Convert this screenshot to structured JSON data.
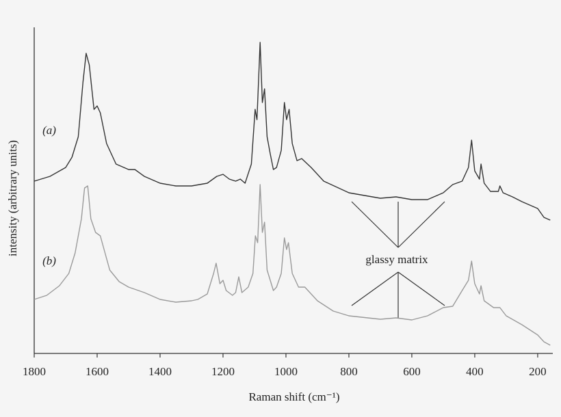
{
  "chart_data": {
    "type": "line",
    "xlabel": "Raman shift (cm⁻¹)",
    "ylabel": "intensity (arbitrary units)",
    "annotation": "glassy matrix",
    "xlim": [
      1800,
      152
    ],
    "ylim": [
      0,
      480
    ],
    "xticks": [
      1800,
      1600,
      1400,
      1200,
      1000,
      800,
      600,
      400,
      200
    ],
    "series": [
      {
        "name": "(a)",
        "color": "#333333",
        "x": [
          1800,
          1750,
          1700,
          1680,
          1660,
          1645,
          1635,
          1625,
          1610,
          1600,
          1590,
          1570,
          1540,
          1500,
          1480,
          1450,
          1400,
          1350,
          1300,
          1250,
          1220,
          1200,
          1180,
          1160,
          1145,
          1130,
          1110,
          1098,
          1092,
          1082,
          1075,
          1068,
          1060,
          1050,
          1040,
          1030,
          1015,
          1005,
          998,
          990,
          980,
          965,
          950,
          920,
          880,
          800,
          700,
          650,
          600,
          550,
          500,
          470,
          440,
          420,
          410,
          400,
          385,
          380,
          370,
          350,
          325,
          320,
          310,
          280,
          250,
          200,
          180,
          160
        ],
        "values": [
          252,
          259,
          272,
          287,
          317,
          397,
          439,
          422,
          357,
          362,
          352,
          307,
          277,
          269,
          269,
          259,
          249,
          245,
          245,
          249,
          259,
          262,
          255,
          252,
          255,
          249,
          277,
          357,
          342,
          455,
          367,
          387,
          317,
          292,
          269,
          272,
          297,
          367,
          342,
          357,
          307,
          282,
          285,
          272,
          252,
          235,
          227,
          229,
          225,
          225,
          235,
          247,
          252,
          272,
          312,
          267,
          255,
          277,
          249,
          237,
          237,
          245,
          235,
          229,
          222,
          212,
          199,
          195
        ]
      },
      {
        "name": "(b)",
        "color": "#9a9a9a",
        "x": [
          1800,
          1760,
          1720,
          1690,
          1670,
          1650,
          1640,
          1630,
          1620,
          1605,
          1590,
          1575,
          1560,
          1530,
          1500,
          1450,
          1400,
          1350,
          1300,
          1280,
          1250,
          1230,
          1222,
          1210,
          1200,
          1190,
          1170,
          1160,
          1150,
          1140,
          1120,
          1105,
          1097,
          1090,
          1082,
          1075,
          1068,
          1060,
          1050,
          1040,
          1030,
          1015,
          1005,
          998,
          992,
          980,
          960,
          940,
          900,
          850,
          800,
          700,
          650,
          600,
          550,
          500,
          470,
          440,
          420,
          410,
          400,
          385,
          380,
          370,
          340,
          320,
          300,
          250,
          200,
          180,
          160
        ],
        "values": [
          79,
          85,
          99,
          117,
          147,
          197,
          242,
          245,
          197,
          177,
          172,
          147,
          122,
          105,
          97,
          89,
          79,
          75,
          77,
          79,
          87,
          117,
          132,
          102,
          107,
          92,
          85,
          89,
          112,
          89,
          97,
          117,
          172,
          162,
          247,
          177,
          192,
          122,
          107,
          92,
          97,
          117,
          169,
          152,
          162,
          117,
          97,
          97,
          77,
          62,
          55,
          50,
          52,
          49,
          55,
          67,
          69,
          92,
          107,
          135,
          102,
          87,
          99,
          77,
          67,
          67,
          55,
          42,
          27,
          17,
          12
        ]
      }
    ]
  }
}
